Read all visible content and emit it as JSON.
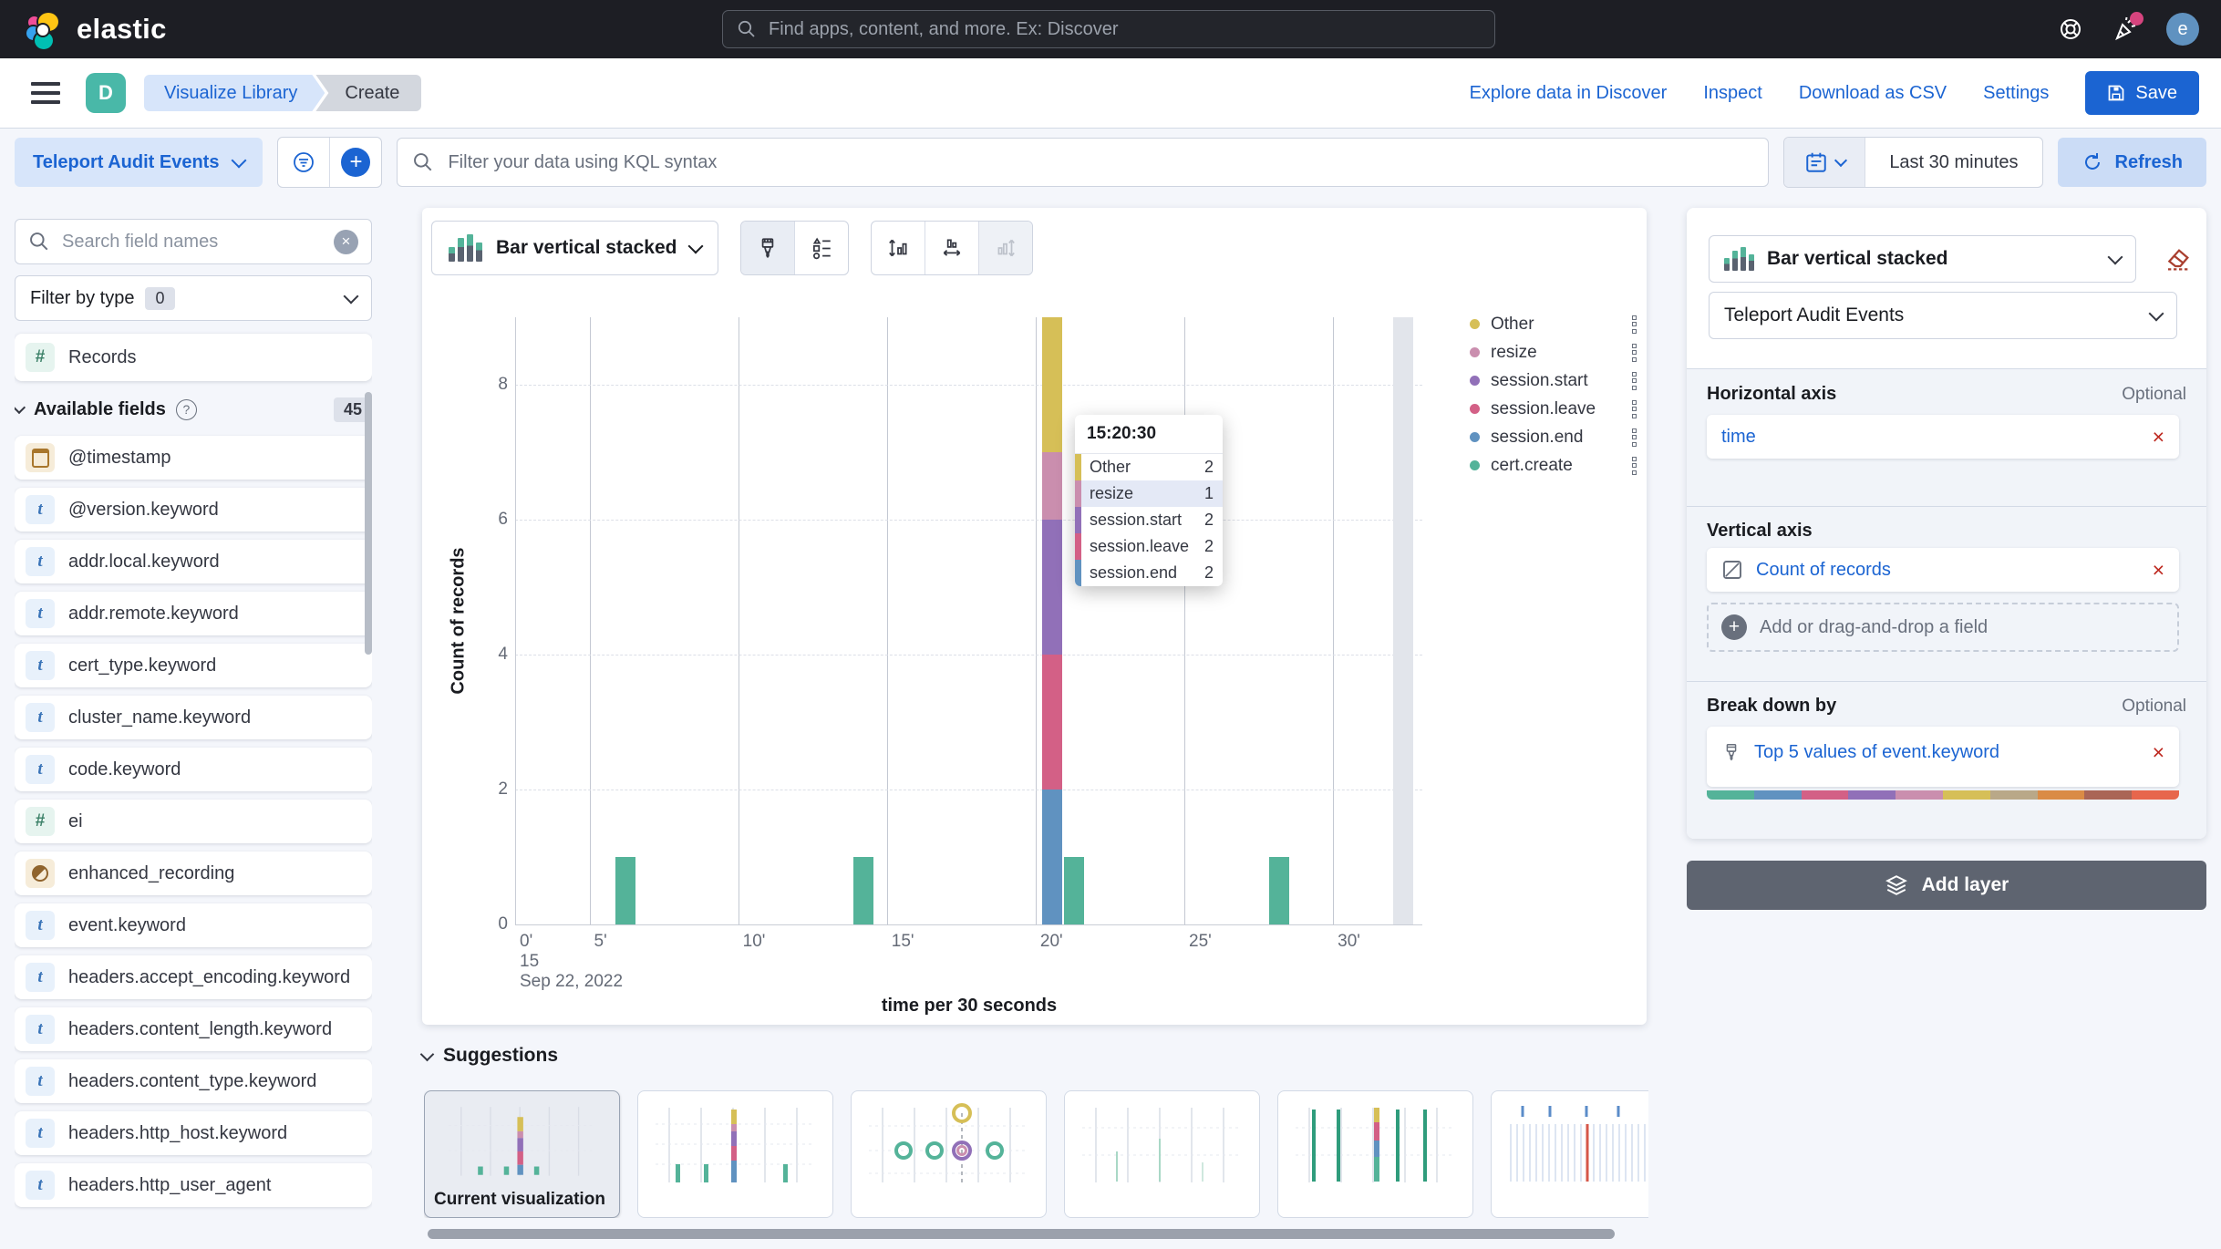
{
  "header": {
    "brand": "elastic",
    "search_placeholder": "Find apps, content, and more. Ex: Discover",
    "avatar_initial": "e"
  },
  "nav": {
    "space_initial": "D",
    "breadcrumbs": [
      "Visualize Library",
      "Create"
    ],
    "actions": [
      "Explore data in Discover",
      "Inspect",
      "Download as CSV",
      "Settings"
    ],
    "save_label": "Save"
  },
  "query_bar": {
    "data_view": "Teleport Audit Events",
    "kql_placeholder": "Filter your data using KQL syntax",
    "time_range": "Last 30 minutes",
    "refresh_label": "Refresh"
  },
  "sidebar": {
    "search_placeholder": "Search field names",
    "filter_by_type_label": "Filter by type",
    "filter_count": "0",
    "records_label": "Records",
    "available_fields_label": "Available fields",
    "available_fields_count": "45",
    "fields": [
      {
        "name": "@timestamp",
        "type": "date"
      },
      {
        "name": "@version.keyword",
        "type": "text"
      },
      {
        "name": "addr.local.keyword",
        "type": "text"
      },
      {
        "name": "addr.remote.keyword",
        "type": "text"
      },
      {
        "name": "cert_type.keyword",
        "type": "text"
      },
      {
        "name": "cluster_name.keyword",
        "type": "text"
      },
      {
        "name": "code.keyword",
        "type": "text"
      },
      {
        "name": "ei",
        "type": "number"
      },
      {
        "name": "enhanced_recording",
        "type": "boolean"
      },
      {
        "name": "event.keyword",
        "type": "text"
      },
      {
        "name": "headers.accept_encoding.keyword",
        "type": "text"
      },
      {
        "name": "headers.content_length.keyword",
        "type": "text"
      },
      {
        "name": "headers.content_type.keyword",
        "type": "text"
      },
      {
        "name": "headers.http_host.keyword",
        "type": "text"
      },
      {
        "name": "headers.http_user_agent",
        "type": "text"
      }
    ]
  },
  "chart_toolbar": {
    "type_label": "Bar vertical stacked"
  },
  "chart_data": {
    "type": "bar",
    "stacked": true,
    "xlabel": "time per 30 seconds",
    "ylabel": "Count of records",
    "ylim": [
      0,
      9
    ],
    "y_ticks": [
      0,
      2,
      4,
      6,
      8
    ],
    "x_ticks": [
      {
        "label": "0'",
        "min": 0
      },
      {
        "label": "5'",
        "min": 5
      },
      {
        "label": "10'",
        "min": 10
      },
      {
        "label": "15'",
        "min": 15
      },
      {
        "label": "20'",
        "min": 20
      },
      {
        "label": "25'",
        "min": 25
      },
      {
        "label": "30'",
        "min": 30
      }
    ],
    "x_start_label": [
      "15",
      "Sep 22, 2022"
    ],
    "colors": {
      "Other": "#D6BF57",
      "resize": "#CA8EAE",
      "session.start": "#9170B8",
      "session.leave": "#D36086",
      "session.end": "#6092C0",
      "cert.create": "#54B399"
    },
    "legend": [
      "Other",
      "resize",
      "session.start",
      "session.leave",
      "session.end",
      "cert.create"
    ],
    "bars": [
      {
        "min": 6.2,
        "segments": [
          {
            "series": "cert.create",
            "value": 1
          }
        ]
      },
      {
        "min": 14.2,
        "segments": [
          {
            "series": "cert.create",
            "value": 1
          }
        ]
      },
      {
        "min": 20.55,
        "segments": [
          {
            "series": "session.end",
            "value": 2
          },
          {
            "series": "session.leave",
            "value": 2
          },
          {
            "series": "session.start",
            "value": 2
          },
          {
            "series": "resize",
            "value": 1
          },
          {
            "series": "Other",
            "value": 2
          }
        ]
      },
      {
        "min": 21.3,
        "segments": [
          {
            "series": "cert.create",
            "value": 1
          }
        ]
      },
      {
        "min": 28.2,
        "segments": [
          {
            "series": "cert.create",
            "value": 1
          }
        ]
      }
    ],
    "partial_bucket_min": 32.35
  },
  "tooltip": {
    "title": "15:20:30",
    "rows": [
      {
        "label": "Other",
        "value": "2",
        "highlighted": false
      },
      {
        "label": "resize",
        "value": "1",
        "highlighted": true
      },
      {
        "label": "session.start",
        "value": "2",
        "highlighted": false
      },
      {
        "label": "session.leave",
        "value": "2",
        "highlighted": false
      },
      {
        "label": "session.end",
        "value": "2",
        "highlighted": false
      }
    ]
  },
  "suggestions": {
    "title": "Suggestions",
    "cards": [
      {
        "name": "suggestion-current-visualization",
        "sketch": "stacked-bars",
        "label": "Current visualization",
        "selected": true
      },
      {
        "name": "suggestion-bar-tall",
        "sketch": "tall-bar",
        "label": "",
        "selected": false
      },
      {
        "name": "suggestion-circles",
        "sketch": "circles",
        "label": "",
        "selected": false
      },
      {
        "name": "suggestion-faint-bars",
        "sketch": "faint-bars",
        "label": "",
        "selected": false
      },
      {
        "name": "suggestion-green-lines",
        "sketch": "green-lines",
        "label": "",
        "selected": false
      },
      {
        "name": "suggestion-heatmap",
        "sketch": "heatmap",
        "label": "",
        "selected": false
      }
    ]
  },
  "layer_panel": {
    "chart_type": "Bar vertical stacked",
    "data_view": "Teleport Audit Events",
    "sections": {
      "horizontal": {
        "title": "Horizontal axis",
        "optional": "Optional",
        "dimension": "time"
      },
      "vertical": {
        "title": "Vertical axis",
        "dimension": "Count of records",
        "add_placeholder": "Add or drag-and-drop a field"
      },
      "breakdown": {
        "title": "Break down by",
        "optional": "Optional",
        "dimension": "Top 5 values of event.keyword",
        "palette": [
          "#54B399",
          "#6092C0",
          "#D36086",
          "#9170B8",
          "#CA8EAE",
          "#D6BF57",
          "#B9A888",
          "#DA8B45",
          "#AA6556",
          "#E7664C"
        ]
      }
    },
    "add_layer_label": "Add layer"
  }
}
